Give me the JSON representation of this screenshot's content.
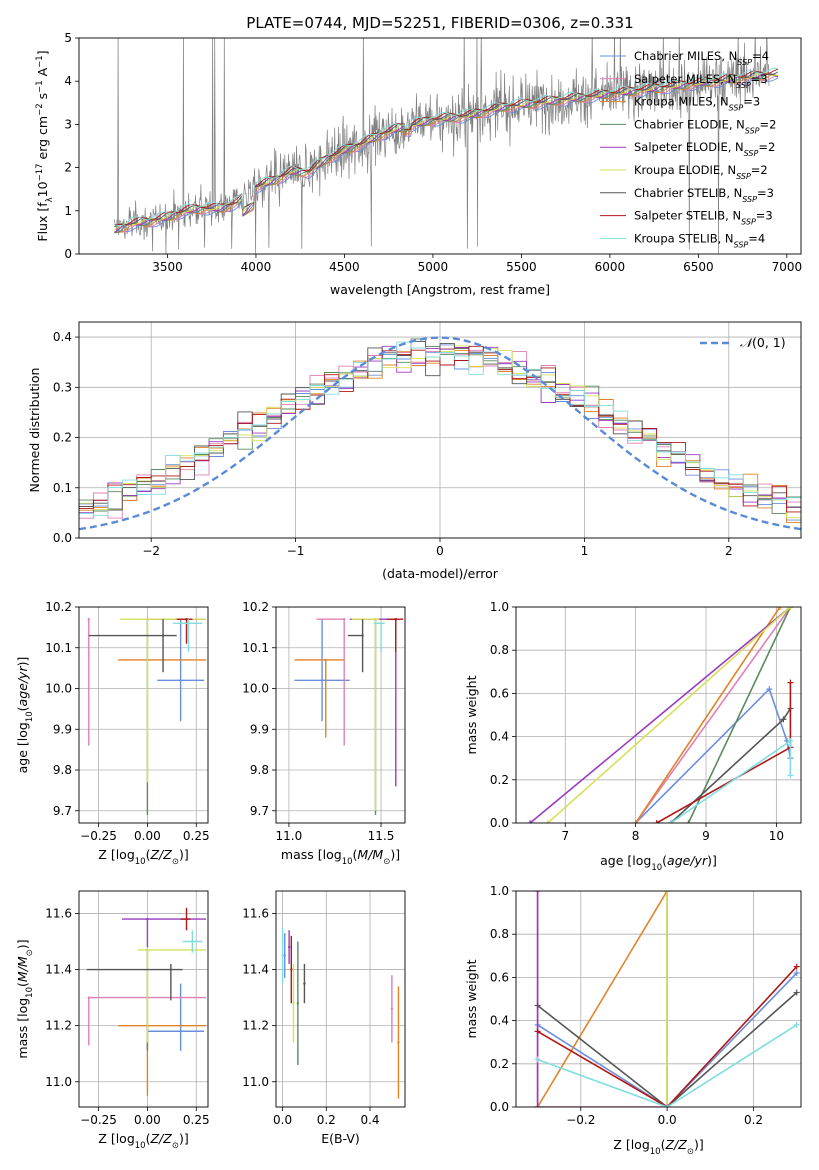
{
  "colors": {
    "chabrier_miles": "#6a8fdc",
    "salpeter_miles": "#e07fb4",
    "kroupa_miles": "#e08426",
    "chabrier_elodie": "#5a8a5e",
    "salpeter_elodie": "#9a3cbf",
    "kroupa_elodie": "#d6e05a",
    "chabrier_stelib": "#555555",
    "salpeter_stelib": "#b01818",
    "kroupa_stelib": "#80dede",
    "data": "#808080"
  },
  "chart_data": [
    {
      "id": "spectrum",
      "type": "line",
      "title": "PLATE=0744, MJD=52251, FIBERID=0306, z=0.331",
      "xlabel": "wavelength [Angstrom, rest frame]",
      "ylabel": "Flux [f_λ 10^-17 erg cm^-2 s^-1 A^-1]",
      "xlim": [
        3000,
        7080
      ],
      "ylim": [
        0,
        5
      ],
      "xticks": [
        "3500",
        "4000",
        "4500",
        "5000",
        "5500",
        "6000",
        "6500",
        "7000"
      ],
      "yticks": [
        "0",
        "1",
        "2",
        "3",
        "4",
        "5"
      ],
      "grid": false,
      "legend_position": "top-right",
      "legend": [
        {
          "key": "chabrier_miles",
          "label": "Chabrier MILES, N",
          "sub": "SSP",
          "tail": "=4"
        },
        {
          "key": "salpeter_miles",
          "label": "Salpeter MILES, N",
          "sub": "SSP",
          "tail": "=3"
        },
        {
          "key": "kroupa_miles",
          "label": "Kroupa MILES, N",
          "sub": "SSP",
          "tail": "=3"
        },
        {
          "key": "chabrier_elodie",
          "label": "Chabrier ELODIE, N",
          "sub": "SSP",
          "tail": "=2"
        },
        {
          "key": "salpeter_elodie",
          "label": "Salpeter ELODIE, N",
          "sub": "SSP",
          "tail": "=2"
        },
        {
          "key": "kroupa_elodie",
          "label": "Kroupa ELODIE, N",
          "sub": "SSP",
          "tail": "=2"
        },
        {
          "key": "chabrier_stelib",
          "label": "Chabrier STELIB, N",
          "sub": "SSP",
          "tail": "=3"
        },
        {
          "key": "salpeter_stelib",
          "label": "Salpeter STELIB, N",
          "sub": "SSP",
          "tail": "=3"
        },
        {
          "key": "kroupa_stelib",
          "label": "Kroupa STELIB, N",
          "sub": "SSP",
          "tail": "=4"
        }
      ],
      "continuum": [
        [
          3200,
          0.55
        ],
        [
          3300,
          0.7
        ],
        [
          3400,
          0.75
        ],
        [
          3500,
          0.85
        ],
        [
          3600,
          1.0
        ],
        [
          3700,
          1.05
        ],
        [
          3800,
          1.05
        ],
        [
          3900,
          1.2
        ],
        [
          4000,
          1.55
        ],
        [
          4100,
          1.7
        ],
        [
          4200,
          1.9
        ],
        [
          4300,
          1.9
        ],
        [
          4400,
          2.2
        ],
        [
          4500,
          2.4
        ],
        [
          4600,
          2.55
        ],
        [
          4700,
          2.75
        ],
        [
          4800,
          2.9
        ],
        [
          4900,
          3.0
        ],
        [
          5000,
          3.1
        ],
        [
          5100,
          3.15
        ],
        [
          5200,
          3.2
        ],
        [
          5300,
          3.3
        ],
        [
          5400,
          3.4
        ],
        [
          5500,
          3.45
        ],
        [
          5600,
          3.5
        ],
        [
          5700,
          3.55
        ],
        [
          5800,
          3.6
        ],
        [
          5900,
          3.65
        ],
        [
          6000,
          3.7
        ],
        [
          6100,
          3.75
        ],
        [
          6200,
          3.8
        ],
        [
          6300,
          3.85
        ],
        [
          6400,
          3.9
        ],
        [
          6500,
          3.95
        ],
        [
          6600,
          4.0
        ],
        [
          6700,
          4.05
        ],
        [
          6800,
          4.1
        ],
        [
          6900,
          4.15
        ]
      ]
    },
    {
      "id": "residuals",
      "type": "line",
      "xlabel": "(data-model)/error",
      "ylabel": "Normed distribution",
      "xlim": [
        -2.5,
        2.5
      ],
      "ylim": [
        0,
        0.43
      ],
      "xticks": [
        "−2",
        "−1",
        "0",
        "1",
        "2"
      ],
      "yticks": [
        "0.0",
        "0.1",
        "0.2",
        "0.3",
        "0.4"
      ],
      "grid": true,
      "legend_position": "top-right",
      "legend_label": "N(0, 1)",
      "gaussian": {
        "mean": 0,
        "sigma": 1,
        "peak": 0.399
      }
    },
    {
      "id": "age_vs_z",
      "type": "scatter",
      "xlabel": "Z [log10(Z/Z⊙)]",
      "ylabel": "age  [log10(age/yr)]",
      "xlim": [
        -0.35,
        0.31
      ],
      "ylim": [
        9.67,
        10.2
      ],
      "xticks": [
        "−0.25",
        "0.00",
        "0.25"
      ],
      "yticks": [
        "9.7",
        "9.8",
        "9.9",
        "10.0",
        "10.1",
        "10.2"
      ],
      "grid": true,
      "points": [
        {
          "key": "chabrier_miles",
          "x": 0.17,
          "xerr": [
            0.12,
            0.12
          ],
          "y": 10.02,
          "yerr": [
            0.1,
            0.15
          ]
        },
        {
          "key": "salpeter_miles",
          "x": -0.3,
          "xerr": [
            0,
            0
          ],
          "y": 10.17,
          "yerr": [
            0.31,
            0
          ]
        },
        {
          "key": "kroupa_miles",
          "x": 0.0,
          "xerr": [
            0.15,
            0.3
          ],
          "y": 10.07,
          "yerr": [
            0.0,
            0.0
          ]
        },
        {
          "key": "chabrier_elodie",
          "x": 0.0,
          "xerr": [
            0,
            0
          ],
          "y": 10.17,
          "yerr": [
            0.48,
            0
          ]
        },
        {
          "key": "salpeter_elodie",
          "x": 0.0,
          "xerr": [
            0,
            0.3
          ],
          "y": 10.17,
          "yerr": [
            0,
            0
          ]
        },
        {
          "key": "kroupa_elodie",
          "x": 0.0,
          "xerr": [
            0.14,
            0.3
          ],
          "y": 10.17,
          "yerr": [
            0.4,
            0
          ]
        },
        {
          "key": "chabrier_stelib",
          "x": 0.08,
          "xerr": [
            0.38,
            0.07
          ],
          "y": 10.13,
          "yerr": [
            0.09,
            0.04
          ]
        },
        {
          "key": "salpeter_stelib",
          "x": 0.2,
          "xerr": [
            0.05,
            0.03
          ],
          "y": 10.17,
          "yerr": [
            0.06,
            0
          ]
        },
        {
          "key": "kroupa_stelib",
          "x": 0.21,
          "xerr": [
            0.08,
            0.07
          ],
          "y": 10.16,
          "yerr": [
            0.07,
            0.01
          ]
        }
      ]
    },
    {
      "id": "age_vs_mass",
      "type": "scatter",
      "xlabel": "mass [log10(M/M⊙)]",
      "xlim": [
        10.93,
        11.63
      ],
      "ylim": [
        9.67,
        10.2
      ],
      "xticks": [
        "11.0",
        "11.5"
      ],
      "yticks": [
        "9.7",
        "9.8",
        "9.9",
        "10.0",
        "10.1",
        "10.2"
      ],
      "grid": true,
      "points": [
        {
          "key": "chabrier_miles",
          "x": 11.18,
          "xerr": [
            0.15,
            0.15
          ],
          "y": 10.02,
          "yerr": [
            0.1,
            0.15
          ]
        },
        {
          "key": "salpeter_miles",
          "x": 11.3,
          "xerr": [
            0.15,
            0
          ],
          "y": 10.17,
          "yerr": [
            0.31,
            0
          ]
        },
        {
          "key": "kroupa_miles",
          "x": 11.2,
          "xerr": [
            0.17,
            0.1
          ],
          "y": 10.07,
          "yerr": [
            0.19,
            0
          ]
        },
        {
          "key": "chabrier_elodie",
          "x": 11.47,
          "xerr": [
            0,
            0
          ],
          "y": 10.17,
          "yerr": [
            0.48,
            0
          ]
        },
        {
          "key": "salpeter_elodie",
          "x": 11.58,
          "xerr": [
            0.25,
            0
          ],
          "y": 10.17,
          "yerr": [
            0.41,
            0
          ]
        },
        {
          "key": "kroupa_elodie",
          "x": 11.47,
          "xerr": [
            0.13,
            0.02
          ],
          "y": 10.17,
          "yerr": [
            0.47,
            0
          ]
        },
        {
          "key": "chabrier_stelib",
          "x": 11.4,
          "xerr": [
            0.08,
            0
          ],
          "y": 10.13,
          "yerr": [
            0.09,
            0.04
          ]
        },
        {
          "key": "salpeter_stelib",
          "x": 11.58,
          "xerr": [
            0.05,
            0.04
          ],
          "y": 10.17,
          "yerr": [
            0.08,
            0
          ]
        },
        {
          "key": "kroupa_stelib",
          "x": 11.5,
          "xerr": [
            0.04,
            0.02
          ],
          "y": 10.16,
          "yerr": [
            0.07,
            0
          ]
        }
      ]
    },
    {
      "id": "massweight_vs_age",
      "type": "line",
      "xlabel": "age  [log10(age/yr)]",
      "ylabel": "mass weight",
      "xlim": [
        6.3,
        10.35
      ],
      "ylim": [
        0,
        1
      ],
      "xticks": [
        "7",
        "8",
        "9",
        "10"
      ],
      "yticks": [
        "0.0",
        "0.2",
        "0.4",
        "0.6",
        "0.8",
        "1.0"
      ],
      "grid": true,
      "series": [
        {
          "key": "chabrier_miles",
          "points": [
            [
              8.0,
              0.0
            ],
            [
              9.9,
              0.62
            ],
            [
              10.15,
              0.38
            ],
            [
              10.2,
              0.3
            ]
          ]
        },
        {
          "key": "salpeter_miles",
          "points": [
            [
              8.0,
              0.0
            ],
            [
              10.2,
              1.0
            ]
          ]
        },
        {
          "key": "kroupa_miles",
          "points": [
            [
              8.0,
              0.0
            ],
            [
              10.05,
              1.0
            ]
          ]
        },
        {
          "key": "chabrier_elodie",
          "points": [
            [
              8.75,
              0.0
            ],
            [
              10.2,
              1.0
            ]
          ]
        },
        {
          "key": "salpeter_elodie",
          "points": [
            [
              6.5,
              0.0
            ],
            [
              10.2,
              1.0
            ]
          ]
        },
        {
          "key": "kroupa_elodie",
          "points": [
            [
              6.75,
              0.0
            ],
            [
              10.2,
              1.0
            ]
          ]
        },
        {
          "key": "chabrier_stelib",
          "points": [
            [
              8.5,
              0.0
            ],
            [
              10.1,
              0.48
            ],
            [
              10.2,
              0.53
            ]
          ]
        },
        {
          "key": "salpeter_stelib",
          "points": [
            [
              8.3,
              0.0
            ],
            [
              10.2,
              0.35
            ],
            [
              10.2,
              0.65
            ]
          ]
        },
        {
          "key": "kroupa_stelib",
          "points": [
            [
              8.5,
              0.0
            ],
            [
              10.2,
              0.38
            ],
            [
              10.2,
              0.22
            ]
          ]
        }
      ]
    },
    {
      "id": "mass_vs_z",
      "type": "scatter",
      "xlabel": "Z [log10(Z/Z⊙)]",
      "ylabel": "mass [log10(M/M⊙)]",
      "xlim": [
        -0.35,
        0.31
      ],
      "ylim": [
        10.91,
        11.68
      ],
      "xticks": [
        "−0.25",
        "0.00",
        "0.25"
      ],
      "yticks": [
        "11.0",
        "11.2",
        "11.4",
        "11.6"
      ],
      "grid": true,
      "points": [
        {
          "key": "chabrier_miles",
          "x": 0.17,
          "xerr": [
            0.17,
            0.12
          ],
          "y": 11.18,
          "yerr": [
            0.07,
            0.17
          ]
        },
        {
          "key": "salpeter_miles",
          "x": -0.3,
          "xerr": [
            0,
            0.6
          ],
          "y": 11.3,
          "yerr": [
            0.17,
            0
          ]
        },
        {
          "key": "kroupa_miles",
          "x": 0.0,
          "xerr": [
            0.15,
            0.3
          ],
          "y": 11.2,
          "yerr": [
            0.25,
            0
          ]
        },
        {
          "key": "chabrier_elodie",
          "x": 0.0,
          "xerr": [
            0,
            0
          ],
          "y": 11.47,
          "yerr": [
            0.36,
            0
          ]
        },
        {
          "key": "salpeter_elodie",
          "x": 0.0,
          "xerr": [
            0.13,
            0.3
          ],
          "y": 11.58,
          "yerr": [
            0.1,
            0
          ]
        },
        {
          "key": "kroupa_elodie",
          "x": 0.0,
          "xerr": [
            0.05,
            0.3
          ],
          "y": 11.47,
          "yerr": [
            0.33,
            0
          ]
        },
        {
          "key": "chabrier_stelib",
          "x": 0.12,
          "xerr": [
            0.43,
            0.06
          ],
          "y": 11.4,
          "yerr": [
            0.11,
            0.02
          ]
        },
        {
          "key": "salpeter_stelib",
          "x": 0.2,
          "xerr": [
            0.03,
            0.02
          ],
          "y": 11.58,
          "yerr": [
            0.04,
            0.04
          ]
        },
        {
          "key": "kroupa_stelib",
          "x": 0.23,
          "xerr": [
            0.05,
            0.05
          ],
          "y": 11.5,
          "yerr": [
            0.04,
            0.04
          ]
        }
      ]
    },
    {
      "id": "mass_vs_ebv",
      "type": "scatter",
      "xlabel": "E(B-V)",
      "xlim": [
        -0.03,
        0.56
      ],
      "ylim": [
        10.91,
        11.68
      ],
      "xticks": [
        "0.0",
        "0.2",
        "0.4"
      ],
      "yticks": [
        "11.0",
        "11.2",
        "11.4",
        "11.6"
      ],
      "grid": true,
      "points": [
        {
          "key": "chabrier_miles",
          "x": 0.01,
          "y": 11.45,
          "yerr": [
            0.08,
            0.08
          ]
        },
        {
          "key": "salpeter_miles",
          "x": 0.5,
          "y": 11.26,
          "yerr": [
            0.12,
            0.12
          ]
        },
        {
          "key": "kroupa_miles",
          "x": 0.53,
          "y": 11.14,
          "yerr": [
            0.2,
            0.2
          ]
        },
        {
          "key": "chabrier_elodie",
          "x": 0.07,
          "y": 11.28,
          "yerr": [
            0.22,
            0.22
          ]
        },
        {
          "key": "salpeter_elodie",
          "x": 0.03,
          "y": 11.48,
          "yerr": [
            0.06,
            0.06
          ]
        },
        {
          "key": "kroupa_elodie",
          "x": 0.05,
          "y": 11.28,
          "yerr": [
            0.14,
            0.14
          ]
        },
        {
          "key": "chabrier_stelib",
          "x": 0.1,
          "y": 11.35,
          "yerr": [
            0.07,
            0.07
          ]
        },
        {
          "key": "salpeter_stelib",
          "x": 0.04,
          "y": 11.4,
          "yerr": [
            0.12,
            0.12
          ]
        },
        {
          "key": "kroupa_stelib",
          "x": 0.0,
          "y": 11.45,
          "yerr": [
            0.1,
            0.1
          ]
        }
      ]
    },
    {
      "id": "massweight_vs_z",
      "type": "line",
      "xlabel": "Z [log10(Z/Z⊙)]",
      "ylabel": "mass weight",
      "xlim": [
        -0.35,
        0.31
      ],
      "ylim": [
        0,
        1
      ],
      "xticks": [
        "−0.2",
        "0.0",
        "0.2"
      ],
      "yticks": [
        "0.0",
        "0.2",
        "0.4",
        "0.6",
        "0.8",
        "1.0"
      ],
      "grid": true,
      "series": [
        {
          "key": "chabrier_miles",
          "points": [
            [
              -0.3,
              0.38
            ],
            [
              0.0,
              0.0
            ],
            [
              0.3,
              0.62
            ]
          ]
        },
        {
          "key": "salpeter_miles",
          "points": [
            [
              -0.3,
              1.0
            ],
            [
              -0.3,
              0.0
            ],
            [
              0.0,
              0.0
            ]
          ]
        },
        {
          "key": "kroupa_miles",
          "points": [
            [
              -0.3,
              0.0
            ],
            [
              0.0,
              1.0
            ]
          ]
        },
        {
          "key": "chabrier_elodie",
          "points": [
            [
              0.0,
              0.0
            ],
            [
              0.0,
              1.0
            ]
          ]
        },
        {
          "key": "salpeter_elodie",
          "points": [
            [
              -0.3,
              0.0
            ],
            [
              -0.3,
              1.0
            ]
          ]
        },
        {
          "key": "kroupa_elodie",
          "points": [
            [
              0.0,
              0.0
            ],
            [
              0.0,
              1.0
            ]
          ]
        },
        {
          "key": "chabrier_stelib",
          "points": [
            [
              -0.3,
              0.47
            ],
            [
              0.0,
              0.0
            ],
            [
              0.3,
              0.53
            ]
          ]
        },
        {
          "key": "salpeter_stelib",
          "points": [
            [
              -0.3,
              0.35
            ],
            [
              0.0,
              0.0
            ],
            [
              0.3,
              0.65
            ]
          ]
        },
        {
          "key": "kroupa_stelib",
          "points": [
            [
              -0.3,
              0.22
            ],
            [
              0.0,
              0.0
            ],
            [
              0.3,
              0.38
            ]
          ]
        }
      ]
    }
  ]
}
